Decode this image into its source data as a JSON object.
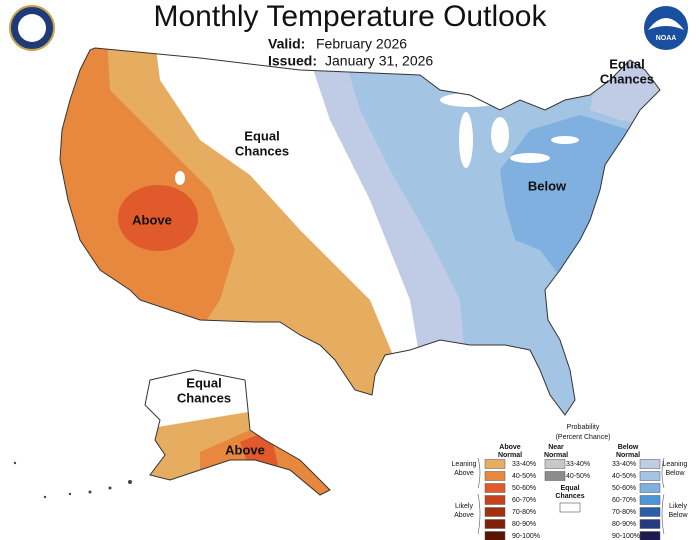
{
  "header": {
    "title": "Monthly Temperature Outlook",
    "valid_label": "Valid:",
    "valid": "February 2026",
    "issued_label": "Issued:",
    "issued": "January 31, 2026",
    "noaa": "NOAA"
  },
  "map_labels": [
    {
      "lines": [
        "Equal",
        "Chances"
      ]
    },
    {
      "lines": [
        "Above"
      ]
    },
    {
      "lines": [
        "Below"
      ]
    },
    {
      "lines": [
        "Equal",
        "Chances"
      ]
    },
    {
      "lines": [
        "Equal",
        "Chances"
      ]
    },
    {
      "lines": [
        "Above"
      ]
    }
  ],
  "legend": {
    "title": [
      "Probability",
      "(Percent Chance)"
    ],
    "columns": [
      {
        "name": [
          "Above",
          "Normal"
        ],
        "items": [
          {
            "label": "33-40%",
            "color": "#e6ad60"
          },
          {
            "label": "40-50%",
            "color": "#e8883f"
          },
          {
            "label": "50-60%",
            "color": "#e05a2b"
          },
          {
            "label": "60-70%",
            "color": "#c8401c"
          },
          {
            "label": "70-80%",
            "color": "#a0300e"
          },
          {
            "label": "80-90%",
            "color": "#7d2208"
          },
          {
            "label": "90-100%",
            "color": "#5a1403"
          }
        ]
      },
      {
        "name": [
          "Near",
          "Normal"
        ],
        "items": [
          {
            "label": "33-40%",
            "color": "#c8c8c8"
          },
          {
            "label": "40-50%",
            "color": "#8c8c8c"
          }
        ]
      },
      {
        "name": [
          "Below",
          "Normal"
        ],
        "items": [
          {
            "label": "33-40%",
            "color": "#c0cce6"
          },
          {
            "label": "40-50%",
            "color": "#a4c4e4"
          },
          {
            "label": "50-60%",
            "color": "#7fb0e0"
          },
          {
            "label": "60-70%",
            "color": "#4a96d6"
          },
          {
            "label": "70-80%",
            "color": "#2a5fa8"
          },
          {
            "label": "80-90%",
            "color": "#263b7d"
          },
          {
            "label": "90-100%",
            "color": "#1d1a4f"
          }
        ]
      }
    ],
    "equal_chances": [
      "Equal",
      "Chances"
    ],
    "side_labels": [
      {
        "lines": [
          "Leaning",
          "Above"
        ]
      },
      {
        "lines": [
          "Likely",
          "Above"
        ]
      },
      {
        "lines": [
          "Leaning",
          "Below"
        ]
      },
      {
        "lines": [
          "Likely",
          "Below"
        ]
      }
    ]
  }
}
